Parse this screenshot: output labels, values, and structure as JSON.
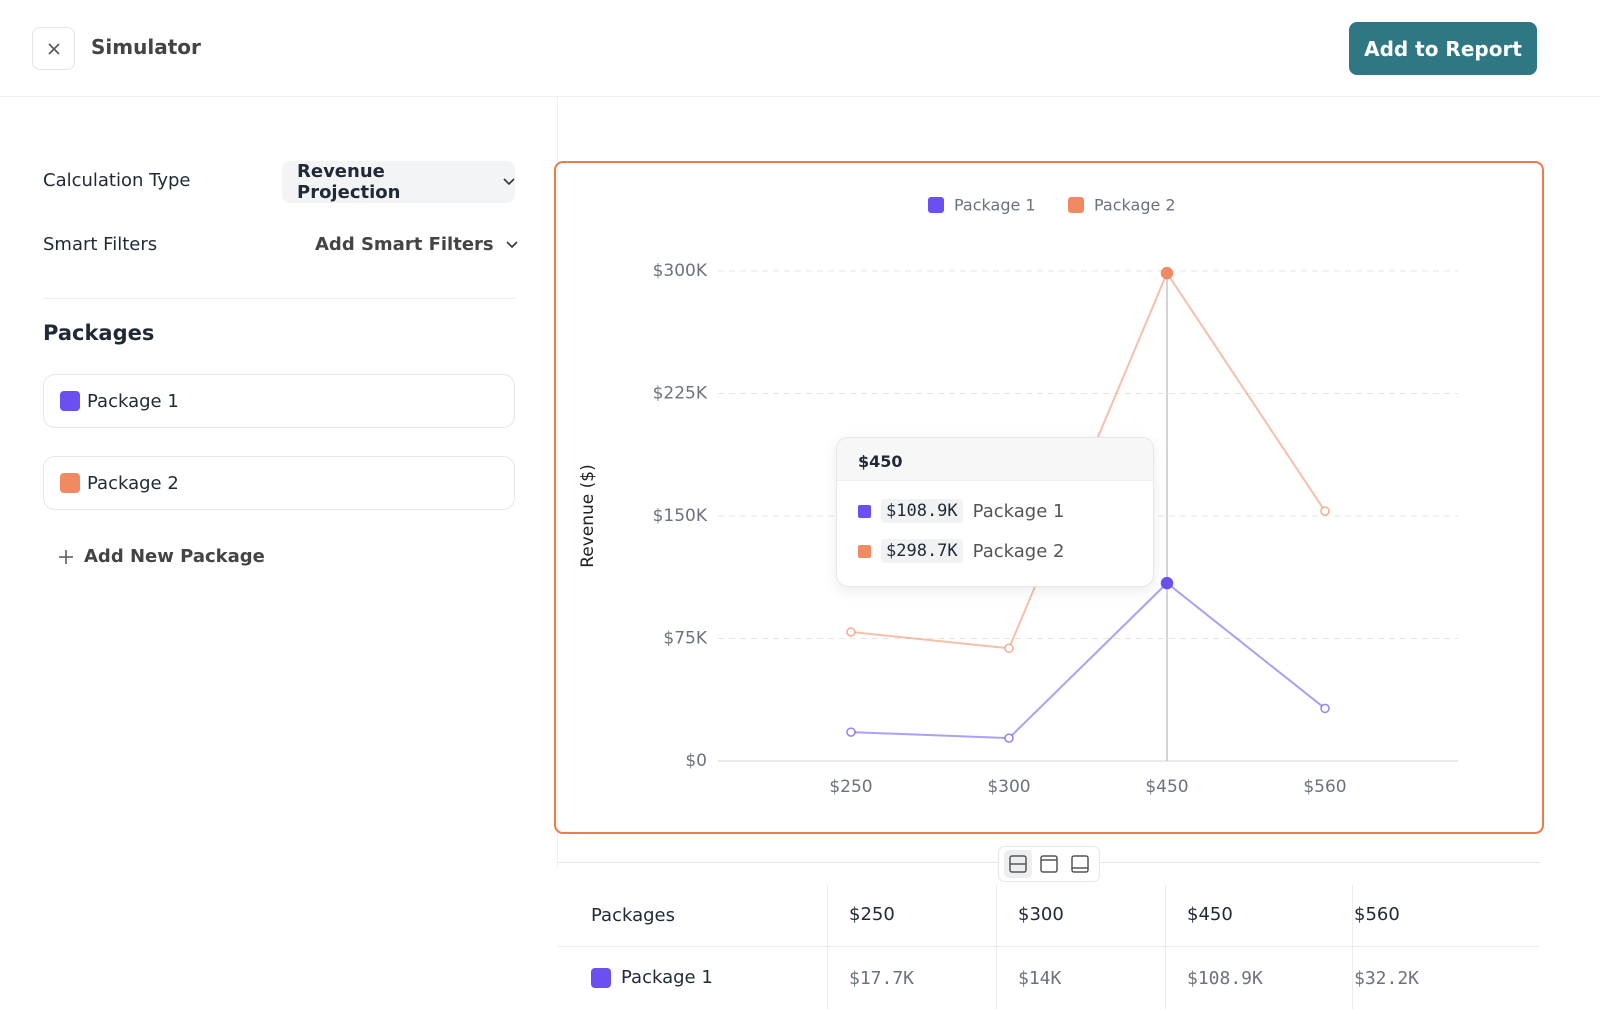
{
  "header": {
    "title": "Simulator",
    "action": "Add to Report"
  },
  "sidebar": {
    "calculation_label": "Calculation Type",
    "calculation_value": "Revenue Projection",
    "filters_label": "Smart Filters",
    "filters_value": "Add Smart Filters",
    "packages_heading": "Packages",
    "add_package": "Add New Package"
  },
  "chart_data": {
    "type": "line",
    "y_label": "Revenue ($)",
    "categories": [
      "$250",
      "$300",
      "$450",
      "$560"
    ],
    "series": [
      {
        "name": "Package 1",
        "color": "#6b4ff0",
        "values": [
          17700,
          14000,
          108900,
          32200
        ],
        "value_labels": [
          "$17.7K",
          "$14K",
          "$108.9K",
          "$32.2K"
        ]
      },
      {
        "name": "Package 2",
        "color": "#ef8a62",
        "values": [
          79000,
          69000,
          298700,
          153000
        ],
        "value_labels": [
          null,
          null,
          "$298.7K",
          null
        ]
      }
    ],
    "ylim": [
      0,
      300000
    ],
    "yticks": [
      {
        "value": 0,
        "label": "$0"
      },
      {
        "value": 75000,
        "label": "$75K"
      },
      {
        "value": 150000,
        "label": "$150K"
      },
      {
        "value": 225000,
        "label": "$225K"
      },
      {
        "value": 300000,
        "label": "$300K"
      }
    ],
    "grid": true,
    "legend": "top"
  },
  "table": {
    "header": "Packages"
  }
}
